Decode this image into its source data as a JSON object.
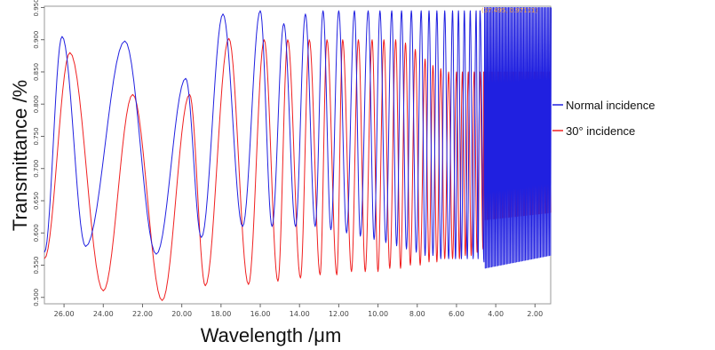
{
  "chart_data": {
    "type": "line",
    "title": "",
    "xlabel": "Wavelength /μm",
    "ylabel": "Transmittance /%",
    "xlim": [
      27.0,
      1.2
    ],
    "ylim": [
      0.49,
      0.952
    ],
    "x_ticks": [
      26.0,
      24.0,
      22.0,
      20.0,
      18.0,
      16.0,
      14.0,
      12.0,
      10.0,
      8.0,
      6.0,
      4.0,
      2.0
    ],
    "x_tick_labels": [
      "26.00",
      "24.00",
      "22.00",
      "20.00",
      "18.00",
      "16.00",
      "14.00",
      "12.00",
      "10.00",
      "8.00",
      "6.00",
      "4.00",
      "2.00"
    ],
    "y_ticks": [
      0.5,
      0.55,
      0.6,
      0.65,
      0.7,
      0.75,
      0.8,
      0.85,
      0.9,
      0.95
    ],
    "y_tick_labels": [
      "0.500",
      "0.550",
      "0.600",
      "0.650",
      "0.700",
      "0.750",
      "0.800",
      "0.850",
      "0.900",
      "0.950"
    ],
    "legend_position": "right",
    "cursor_readout": "(37.495, 0.97111)",
    "series": [
      {
        "name": "Normal incidence",
        "color": "#2020e0",
        "peaks": [
          [
            26.1,
            0.905
          ],
          [
            22.9,
            0.898
          ],
          [
            19.8,
            0.84
          ],
          [
            17.9,
            0.94
          ],
          [
            16.0,
            0.945
          ],
          [
            14.8,
            0.925
          ],
          [
            13.7,
            0.94
          ],
          [
            12.8,
            0.945
          ],
          [
            12.0,
            0.945
          ],
          [
            11.2,
            0.945
          ],
          [
            10.5,
            0.945
          ],
          [
            9.9,
            0.945
          ],
          [
            9.3,
            0.945
          ],
          [
            8.8,
            0.945
          ],
          [
            8.3,
            0.945
          ],
          [
            7.8,
            0.945
          ],
          [
            7.4,
            0.945
          ],
          [
            7.0,
            0.945
          ],
          [
            6.6,
            0.945
          ],
          [
            6.2,
            0.945
          ],
          [
            5.9,
            0.945
          ],
          [
            5.6,
            0.945
          ],
          [
            5.3,
            0.945
          ],
          [
            5.0,
            0.945
          ],
          [
            4.8,
            0.945
          ]
        ],
        "valleys": [
          [
            27.0,
            0.57
          ],
          [
            24.9,
            0.579
          ],
          [
            21.3,
            0.567
          ],
          [
            19.0,
            0.593
          ],
          [
            16.9,
            0.61
          ],
          [
            15.4,
            0.61
          ],
          [
            14.2,
            0.61
          ],
          [
            13.2,
            0.61
          ],
          [
            12.4,
            0.605
          ],
          [
            11.6,
            0.6
          ],
          [
            10.9,
            0.595
          ],
          [
            10.2,
            0.59
          ],
          [
            9.6,
            0.585
          ],
          [
            9.05,
            0.58
          ],
          [
            8.55,
            0.575
          ],
          [
            8.05,
            0.57
          ],
          [
            7.6,
            0.565
          ],
          [
            7.2,
            0.565
          ],
          [
            6.8,
            0.56
          ],
          [
            6.4,
            0.56
          ],
          [
            6.05,
            0.56
          ],
          [
            5.75,
            0.56
          ],
          [
            5.45,
            0.56
          ],
          [
            5.15,
            0.56
          ],
          [
            4.9,
            0.56
          ],
          [
            4.6,
            0.555
          ]
        ],
        "dense_band": {
          "x_from": 4.6,
          "x_to": 1.2,
          "min": 0.545,
          "max": 0.95
        }
      },
      {
        "name": "30° incidence",
        "color": "#f02020",
        "peaks": [
          [
            25.7,
            0.88
          ],
          [
            22.5,
            0.815
          ],
          [
            19.6,
            0.815
          ],
          [
            17.6,
            0.902
          ],
          [
            15.8,
            0.9
          ],
          [
            14.6,
            0.9
          ],
          [
            13.5,
            0.9
          ],
          [
            12.6,
            0.9
          ],
          [
            11.8,
            0.9
          ],
          [
            11.0,
            0.9
          ],
          [
            10.3,
            0.9
          ],
          [
            9.7,
            0.9
          ],
          [
            9.1,
            0.9
          ],
          [
            8.6,
            0.895
          ],
          [
            8.1,
            0.885
          ],
          [
            7.6,
            0.87
          ],
          [
            7.2,
            0.86
          ],
          [
            6.8,
            0.855
          ],
          [
            6.4,
            0.85
          ],
          [
            6.0,
            0.85
          ],
          [
            5.7,
            0.85
          ],
          [
            5.4,
            0.85
          ],
          [
            5.1,
            0.85
          ],
          [
            4.8,
            0.85
          ]
        ],
        "valleys": [
          [
            27.0,
            0.56
          ],
          [
            24.0,
            0.51
          ],
          [
            21.0,
            0.495
          ],
          [
            18.8,
            0.518
          ],
          [
            16.6,
            0.52
          ],
          [
            15.1,
            0.525
          ],
          [
            13.95,
            0.53
          ],
          [
            12.95,
            0.535
          ],
          [
            12.1,
            0.535
          ],
          [
            11.35,
            0.54
          ],
          [
            10.65,
            0.54
          ],
          [
            10.0,
            0.54
          ],
          [
            9.4,
            0.545
          ],
          [
            8.85,
            0.545
          ],
          [
            8.35,
            0.55
          ],
          [
            7.85,
            0.55
          ],
          [
            7.4,
            0.555
          ],
          [
            7.0,
            0.555
          ],
          [
            6.6,
            0.56
          ],
          [
            6.2,
            0.56
          ],
          [
            5.85,
            0.56
          ],
          [
            5.55,
            0.565
          ],
          [
            5.25,
            0.565
          ],
          [
            4.95,
            0.57
          ],
          [
            4.65,
            0.575
          ]
        ],
        "dense_band": {
          "x_from": 4.65,
          "x_to": 1.2,
          "min": 0.62,
          "max": 0.85
        }
      }
    ]
  }
}
